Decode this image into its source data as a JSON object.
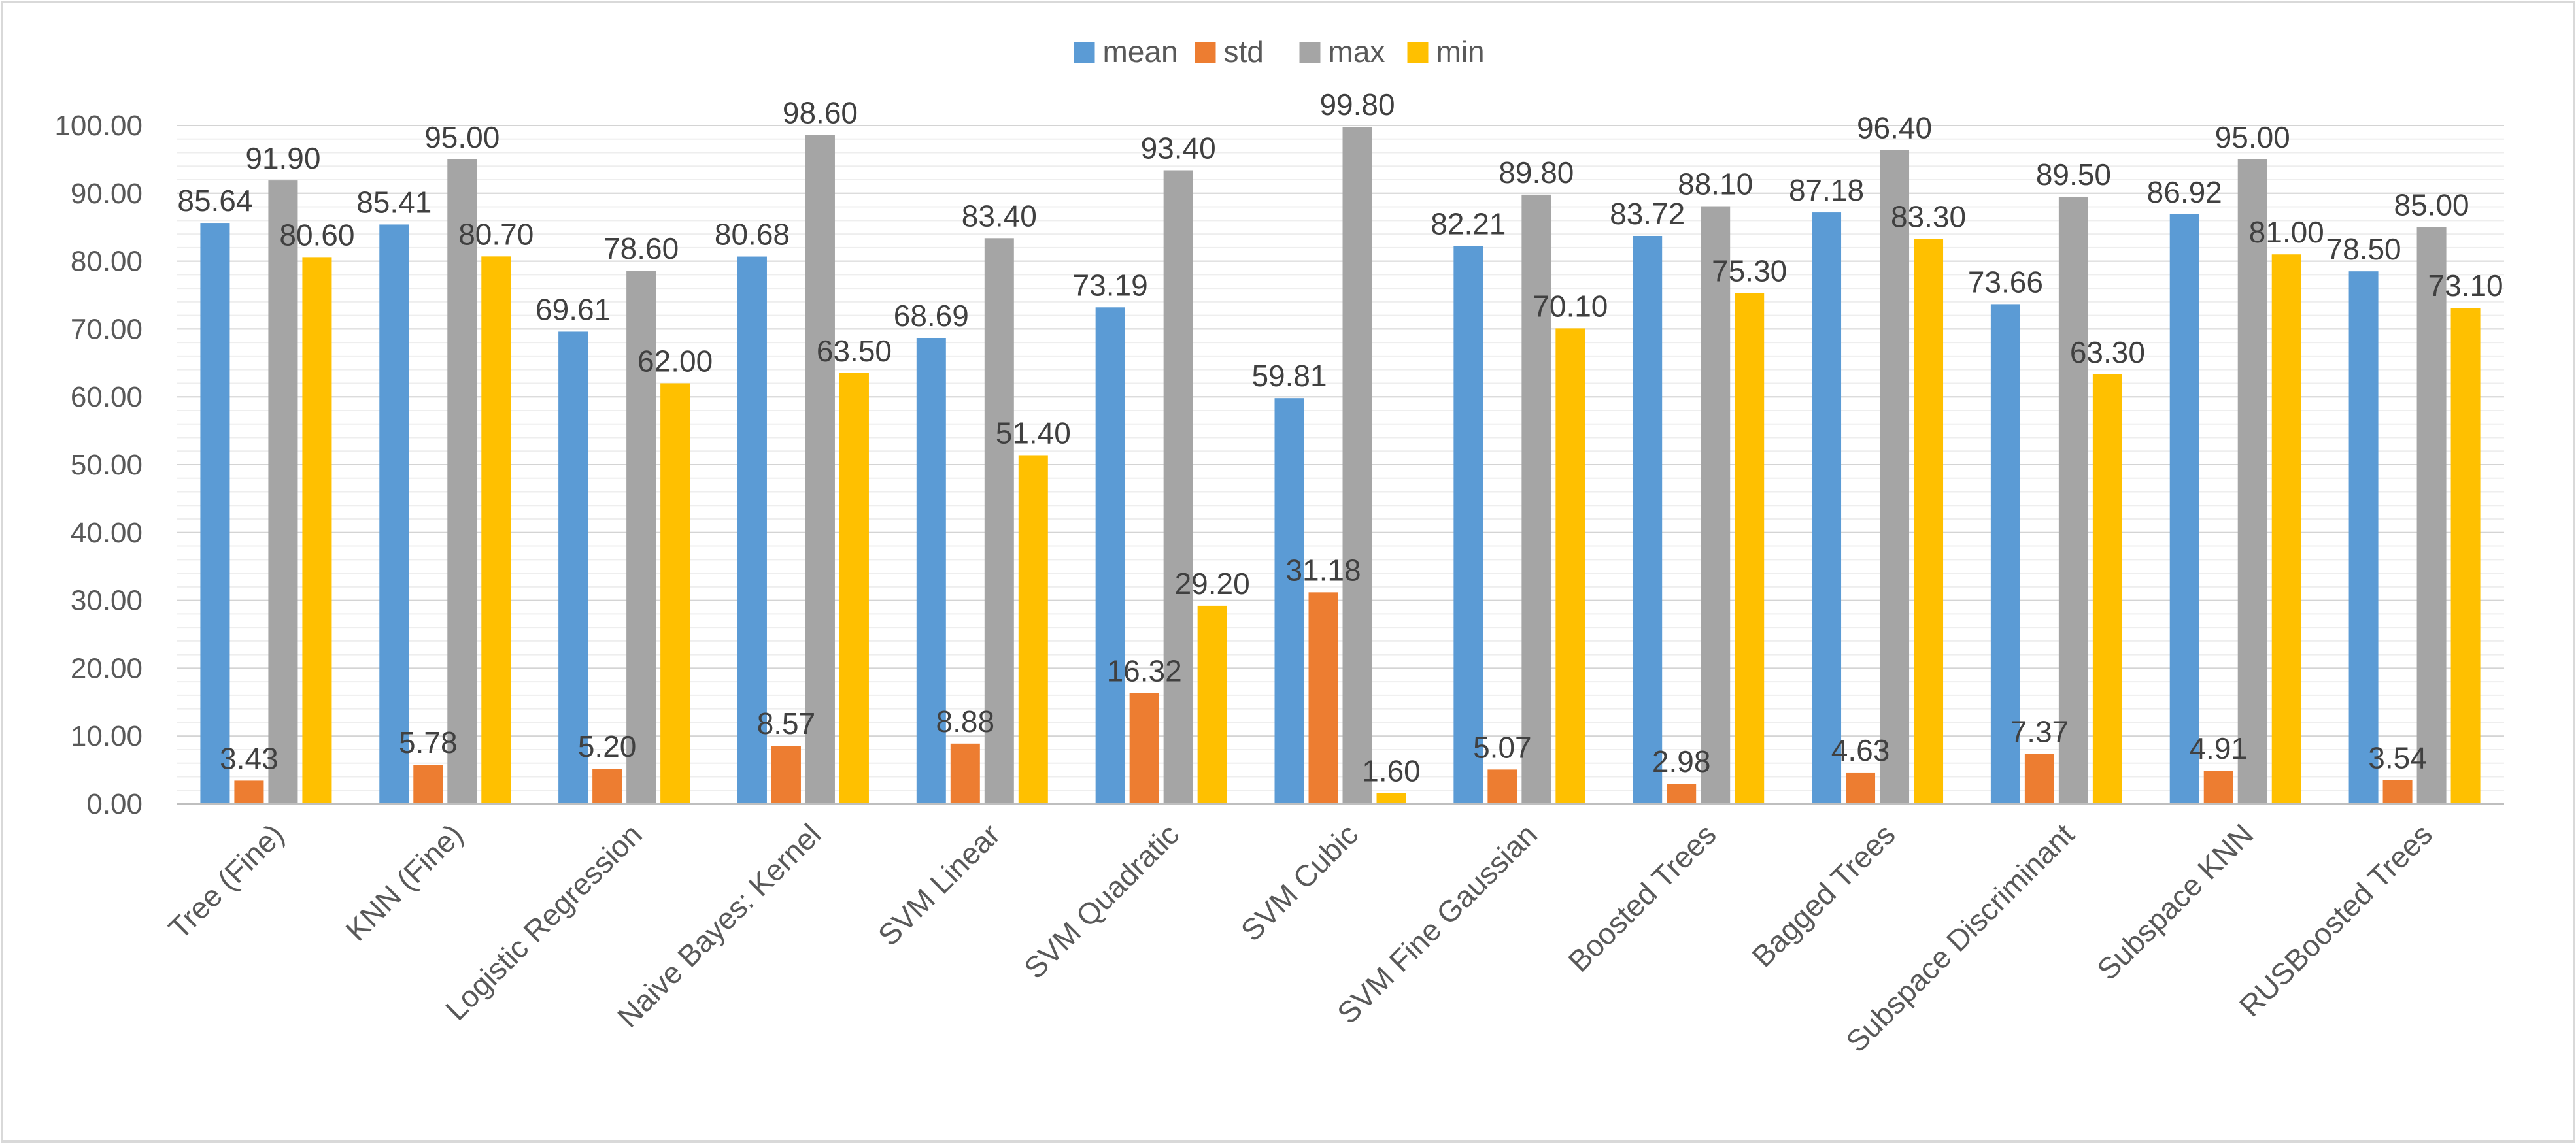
{
  "chart_data": {
    "type": "bar",
    "title": "",
    "xlabel": "",
    "ylabel": "",
    "ylim": [
      0,
      100
    ],
    "ytick_step": 10,
    "ytick_labels": [
      "0.00",
      "10.00",
      "20.00",
      "30.00",
      "40.00",
      "50.00",
      "60.00",
      "70.00",
      "80.00",
      "90.00",
      "100.00"
    ],
    "minor_grid_step": 2,
    "grid": true,
    "legend_position": "top-center",
    "categories": [
      "Tree (Fine)",
      "KNN (Fine)",
      "Logistic Regression",
      "Naive Bayes: Kernel",
      "SVM Linear",
      "SVM Quadratic",
      "SVM Cubic",
      "SVM Fine Gaussian",
      "Boosted Trees",
      "Bagged Trees",
      "Subspace Discriminant",
      "Subspace KNN",
      "RUSBoosted Trees"
    ],
    "series": [
      {
        "name": "mean",
        "color": "#5B9BD5",
        "values": [
          85.64,
          85.41,
          69.61,
          80.68,
          68.69,
          73.19,
          59.81,
          82.21,
          83.72,
          87.18,
          73.66,
          86.92,
          78.5
        ],
        "labels": [
          "85.64",
          "85.41",
          "69.61",
          "80.68",
          "68.69",
          "73.19",
          "59.81",
          "82.21",
          "83.72",
          "87.18",
          "73.66",
          "86.92",
          "78.50"
        ]
      },
      {
        "name": "std",
        "color": "#ED7D31",
        "values": [
          3.43,
          5.78,
          5.2,
          8.57,
          8.88,
          16.32,
          31.18,
          5.07,
          2.98,
          4.63,
          7.37,
          4.91,
          3.54
        ],
        "labels": [
          "3.43",
          "5.78",
          "5.20",
          "8.57",
          "8.88",
          "16.32",
          "31.18",
          "5.07",
          "2.98",
          "4.63",
          "7.37",
          "4.91",
          "3.54"
        ]
      },
      {
        "name": "max",
        "color": "#A5A5A5",
        "values": [
          91.9,
          95.0,
          78.6,
          98.6,
          83.4,
          93.4,
          99.8,
          89.8,
          88.1,
          96.4,
          89.5,
          95.0,
          85.0
        ],
        "labels": [
          "91.90",
          "95.00",
          "78.60",
          "98.60",
          "83.40",
          "93.40",
          "99.80",
          "89.80",
          "88.10",
          "96.40",
          "89.50",
          "95.00",
          "85.00"
        ]
      },
      {
        "name": "min",
        "color": "#FFC000",
        "values": [
          80.6,
          80.7,
          62.0,
          63.5,
          51.4,
          29.2,
          1.6,
          70.1,
          75.3,
          83.3,
          63.3,
          81.0,
          73.1
        ],
        "labels": [
          "80.60",
          "80.70",
          "62.00",
          "63.50",
          "51.40",
          "29.20",
          "1.60",
          "70.10",
          "75.30",
          "83.30",
          "63.30",
          "81.00",
          "73.10"
        ]
      }
    ]
  }
}
